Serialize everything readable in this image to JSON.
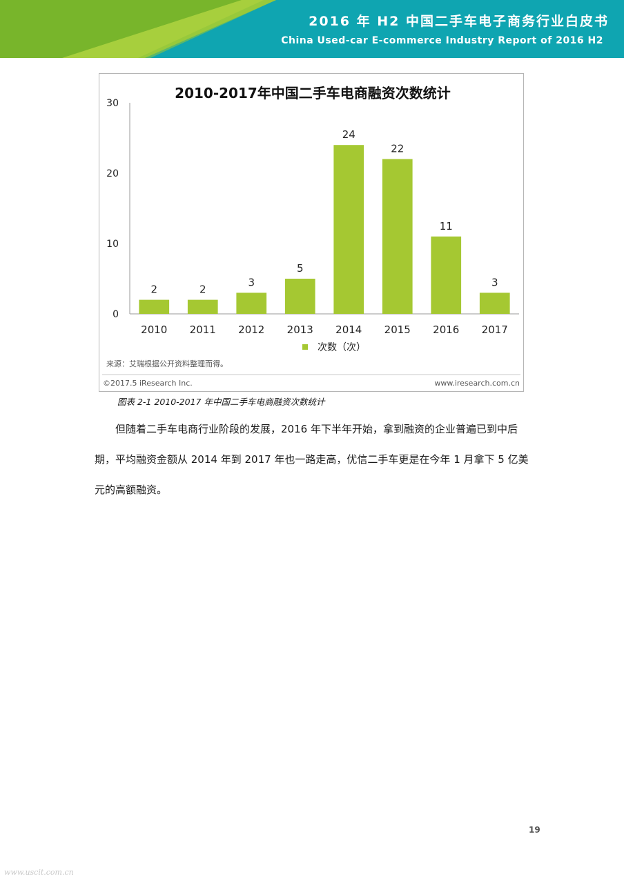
{
  "header": {
    "title": "2016 年 H2 中国二手车电子商务行业白皮书",
    "subtitle": "China Used-car E-commerce Industry Report of 2016 H2"
  },
  "colors": {
    "header_dark_green": "#78b52b",
    "header_light_green": "#a7cf3d",
    "header_teal": "#0fa5b1",
    "bar_green": "#a5c832"
  },
  "figure": {
    "source_note": "来源：艾瑞根据公开资料整理而得。",
    "copyright": "©2017.5 iResearch Inc.",
    "website": "www.iresearch.com.cn"
  },
  "chart_data": {
    "type": "bar",
    "title": "2010-2017年中国二手车电商融资次数统计",
    "categories": [
      "2010",
      "2011",
      "2012",
      "2013",
      "2014",
      "2015",
      "2016",
      "2017"
    ],
    "series": [
      {
        "name": "次数（次）",
        "values": [
          2,
          2,
          3,
          5,
          24,
          22,
          11,
          3
        ]
      }
    ],
    "ylim": [
      0,
      30
    ],
    "yticks": [
      "0",
      "10",
      "20",
      "30"
    ],
    "data_labels": [
      "2",
      "2",
      "3",
      "5",
      "24",
      "22",
      "11",
      "3"
    ],
    "grid": false,
    "legend_position": "bottom"
  },
  "caption": "图表 2-1   2010-2017 年中国二手车电商融资次数统计",
  "body_text": "但随着二手车电商行业阶段的发展，2016 年下半年开始，拿到融资的企业普遍已到中后期，平均融资金额从 2014 年到 2017 年也一路走高，优信二手车更是在今年 1 月拿下 5 亿美元的高额融资。",
  "page_number": "19",
  "watermark": "www.uscit.com.cn"
}
